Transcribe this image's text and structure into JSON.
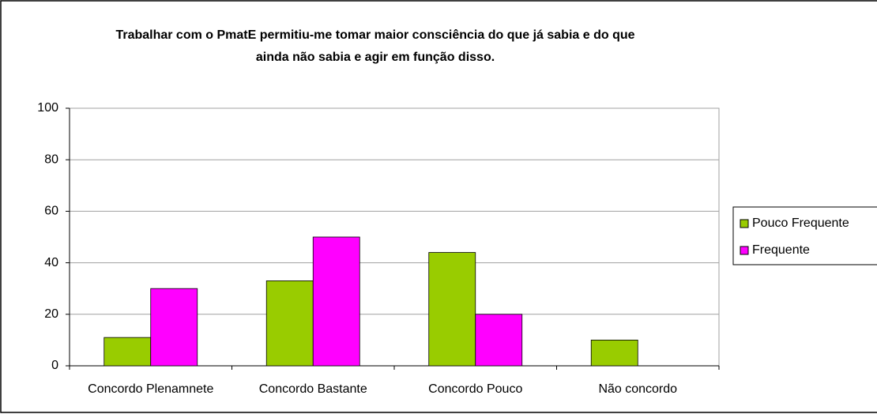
{
  "chart_data": {
    "type": "bar",
    "title_lines": [
      "Trabalhar com o PmatE permitiu-me tomar maior consciência do que já sabia e do que",
      "ainda não sabia e agir em função disso."
    ],
    "categories": [
      "Concordo Plenamnete",
      "Concordo Bastante",
      "Concordo Pouco",
      "Não concordo"
    ],
    "series": [
      {
        "name": "Pouco Frequente",
        "color": "#99cc00",
        "values": [
          11,
          33,
          44,
          10
        ]
      },
      {
        "name": "Frequente",
        "color": "#ff00ff",
        "values": [
          30,
          50,
          20,
          0
        ]
      }
    ],
    "ylim": [
      0,
      100
    ],
    "yticks": [
      0,
      20,
      40,
      60,
      80,
      100
    ],
    "grid": true,
    "legend": "right"
  }
}
